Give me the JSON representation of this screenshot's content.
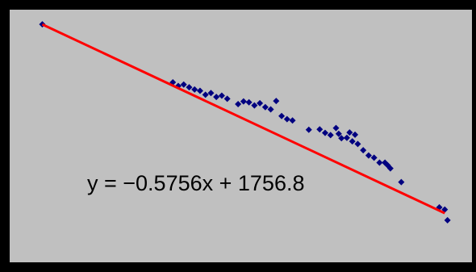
{
  "colors": {
    "frame": "#000000",
    "plot_background": "#c0c0c0",
    "points": "#000080",
    "trendline": "#ff0000"
  },
  "chart_data": {
    "type": "scatter",
    "title": "",
    "xlabel": "",
    "ylabel": "",
    "grid": false,
    "legend": "none",
    "axes_visible": false,
    "xlim": [
      1940,
      2025
    ],
    "ylim": [
      583,
      640
    ],
    "trendline": {
      "type": "linear",
      "slope": -0.5756,
      "intercept": 1756.8,
      "equation_label": "y = −0.5756x + 1756.8"
    },
    "series": [
      {
        "marker": "diamond",
        "points": [
          [
            1946,
            636.7
          ],
          [
            1970,
            623.6
          ],
          [
            1971,
            622.8
          ],
          [
            1972,
            623.1
          ],
          [
            1973,
            622.5
          ],
          [
            1974,
            622.0
          ],
          [
            1975,
            621.7
          ],
          [
            1976,
            620.8
          ],
          [
            1977,
            621.2
          ],
          [
            1978,
            620.3
          ],
          [
            1979,
            620.6
          ],
          [
            1980,
            619.9
          ],
          [
            1982,
            618.7
          ],
          [
            1983,
            619.3
          ],
          [
            1984,
            619.1
          ],
          [
            1985,
            618.4
          ],
          [
            1986,
            618.9
          ],
          [
            1987,
            618.0
          ],
          [
            1988,
            617.5
          ],
          [
            1989,
            619.4
          ],
          [
            1990,
            616.0
          ],
          [
            1991,
            615.3
          ],
          [
            1992,
            615.0
          ],
          [
            1995,
            612.9
          ],
          [
            1997,
            613.0
          ],
          [
            1998,
            612.2
          ],
          [
            1999,
            611.7
          ],
          [
            2000,
            613.3
          ],
          [
            2000.5,
            612.0
          ],
          [
            2001,
            611.0
          ],
          [
            2002,
            611.1
          ],
          [
            2002.5,
            612.3
          ],
          [
            2003,
            610.3
          ],
          [
            2003.5,
            611.8
          ],
          [
            2004,
            609.7
          ],
          [
            2005,
            608.3
          ],
          [
            2006,
            607.1
          ],
          [
            2007,
            606.6
          ],
          [
            2008,
            605.5
          ],
          [
            2009,
            605.5
          ],
          [
            2009.5,
            604.9
          ],
          [
            2010,
            604.2
          ],
          [
            2012,
            601.1
          ],
          [
            2019,
            595.4
          ],
          [
            2020,
            594.9
          ],
          [
            2020.5,
            592.5
          ]
        ]
      }
    ]
  }
}
